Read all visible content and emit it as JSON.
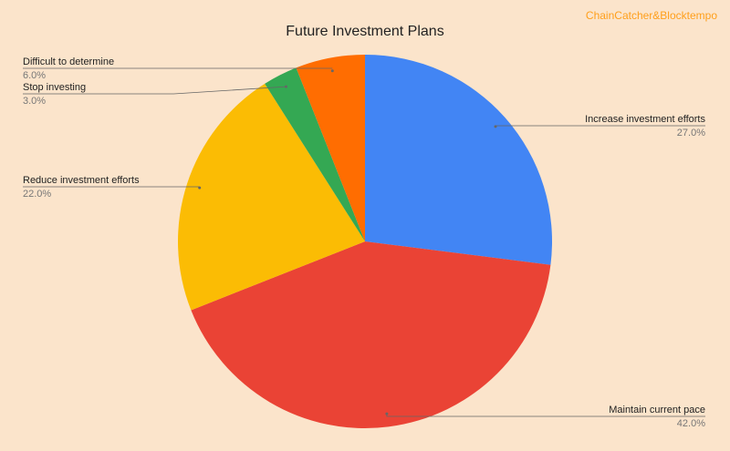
{
  "chart_data": {
    "type": "pie",
    "title": "Future Investment Plans",
    "watermark": "ChainCatcher&Blocktempo",
    "categories": [
      "Increase investment efforts",
      "Maintain current pace",
      "Reduce investment efforts",
      "Stop investing",
      "Difficult to determine"
    ],
    "values": [
      27,
      42,
      22,
      3,
      6
    ],
    "value_labels": [
      "27.0%",
      "42.0%",
      "22.0%",
      "3.0%",
      "6.0%"
    ],
    "colors": [
      "#4285f4",
      "#ea4335",
      "#fbbc04",
      "#34a853",
      "#ff6d01"
    ]
  }
}
